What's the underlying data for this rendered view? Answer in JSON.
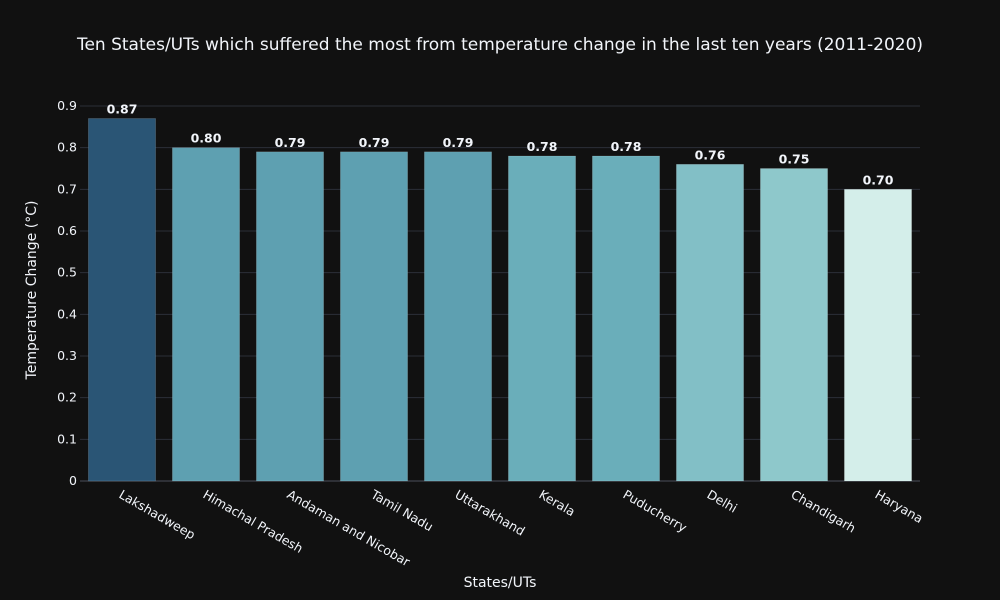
{
  "chart_data": {
    "type": "bar",
    "title": "Ten States/UTs which suffered the most from temperature change in the last ten years (2011-2020)",
    "xlabel": "States/UTs",
    "ylabel": "Temperature Change (°C)",
    "ylim": [
      0,
      0.9
    ],
    "yticks": [
      "0",
      "0.1",
      "0.2",
      "0.3",
      "0.4",
      "0.5",
      "0.6",
      "0.7",
      "0.8",
      "0.9"
    ],
    "grid": true,
    "categories": [
      "Lakshadweep",
      "Himachal Pradesh",
      "Andaman and Nicobar",
      "Tamil Nadu",
      "Uttarakhand",
      "Kerala",
      "Puducherry",
      "Delhi",
      "Chandigarh",
      "Haryana"
    ],
    "values": [
      0.87,
      0.8,
      0.79,
      0.79,
      0.79,
      0.78,
      0.78,
      0.76,
      0.75,
      0.7
    ],
    "value_labels": [
      "0.87",
      "0.80",
      "0.79",
      "0.79",
      "0.79",
      "0.78",
      "0.78",
      "0.76",
      "0.75",
      "0.70"
    ],
    "bar_colors": [
      "#2a5575",
      "#5ea0b1",
      "#5ea0b1",
      "#5ea0b1",
      "#5ea0b1",
      "#6aaeba",
      "#6aaeba",
      "#82bfc6",
      "#8ec8cb",
      "#d4eeea"
    ],
    "colors": {
      "background": "#111111",
      "grid": "#2b2f38",
      "text": "#f2f5fa"
    }
  }
}
